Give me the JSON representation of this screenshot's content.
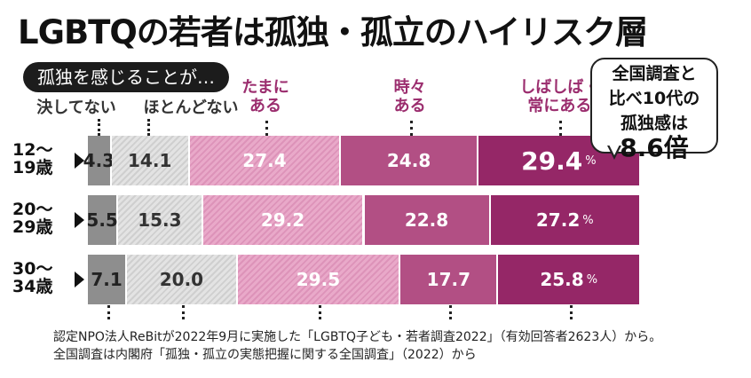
{
  "title": "LGBTQの若者は孤独・孤立のハイリスク層",
  "question": "孤独を感じることが…",
  "callout": {
    "line1": "全国調査と",
    "line2": "比べ10代の",
    "line3": "孤独感は",
    "line4": "8.6倍"
  },
  "notes": [
    "認定NPO法人ReBitが2022年9月に実施した「LGBTQ子ども・若者調査2022」（有効回答者2623人）から。",
    "全国調査は内閣府「孤独・孤立の実態把握に関する全国調査」（2022）から"
  ],
  "chart_data": {
    "type": "bar",
    "orientation": "horizontal-stacked-100",
    "categories": [
      "決してない",
      "ほとんどない",
      "たまにある",
      "時々ある",
      "しばしば・常にある"
    ],
    "category_labels": [
      [
        "決してない"
      ],
      [
        "ほとんどない"
      ],
      [
        "たまに",
        "ある"
      ],
      [
        "時々",
        "ある"
      ],
      [
        "しばしば・",
        "常にある"
      ]
    ],
    "rows": [
      {
        "label": [
          "12〜",
          "19歳"
        ],
        "values": [
          4.3,
          14.1,
          27.4,
          24.8,
          29.4
        ],
        "labels": [
          "4.3",
          "14.1",
          "27.4",
          "24.8",
          "29.4"
        ]
      },
      {
        "label": [
          "20〜",
          "29歳"
        ],
        "values": [
          5.5,
          15.3,
          29.2,
          22.8,
          27.2
        ],
        "labels": [
          "5.5",
          "15.3",
          "29.2",
          "22.8",
          "27.2"
        ]
      },
      {
        "label": [
          "30〜",
          "34歳"
        ],
        "values": [
          7.1,
          20.0,
          29.5,
          17.7,
          25.8
        ],
        "labels": [
          "7.1",
          "20.0",
          "29.5",
          "17.7",
          "25.8"
        ]
      }
    ],
    "unit": "%",
    "colors": [
      "#8e8e8e",
      "#d8d8d8",
      "#e39cc1",
      "#b24f84",
      "#952767"
    ]
  }
}
